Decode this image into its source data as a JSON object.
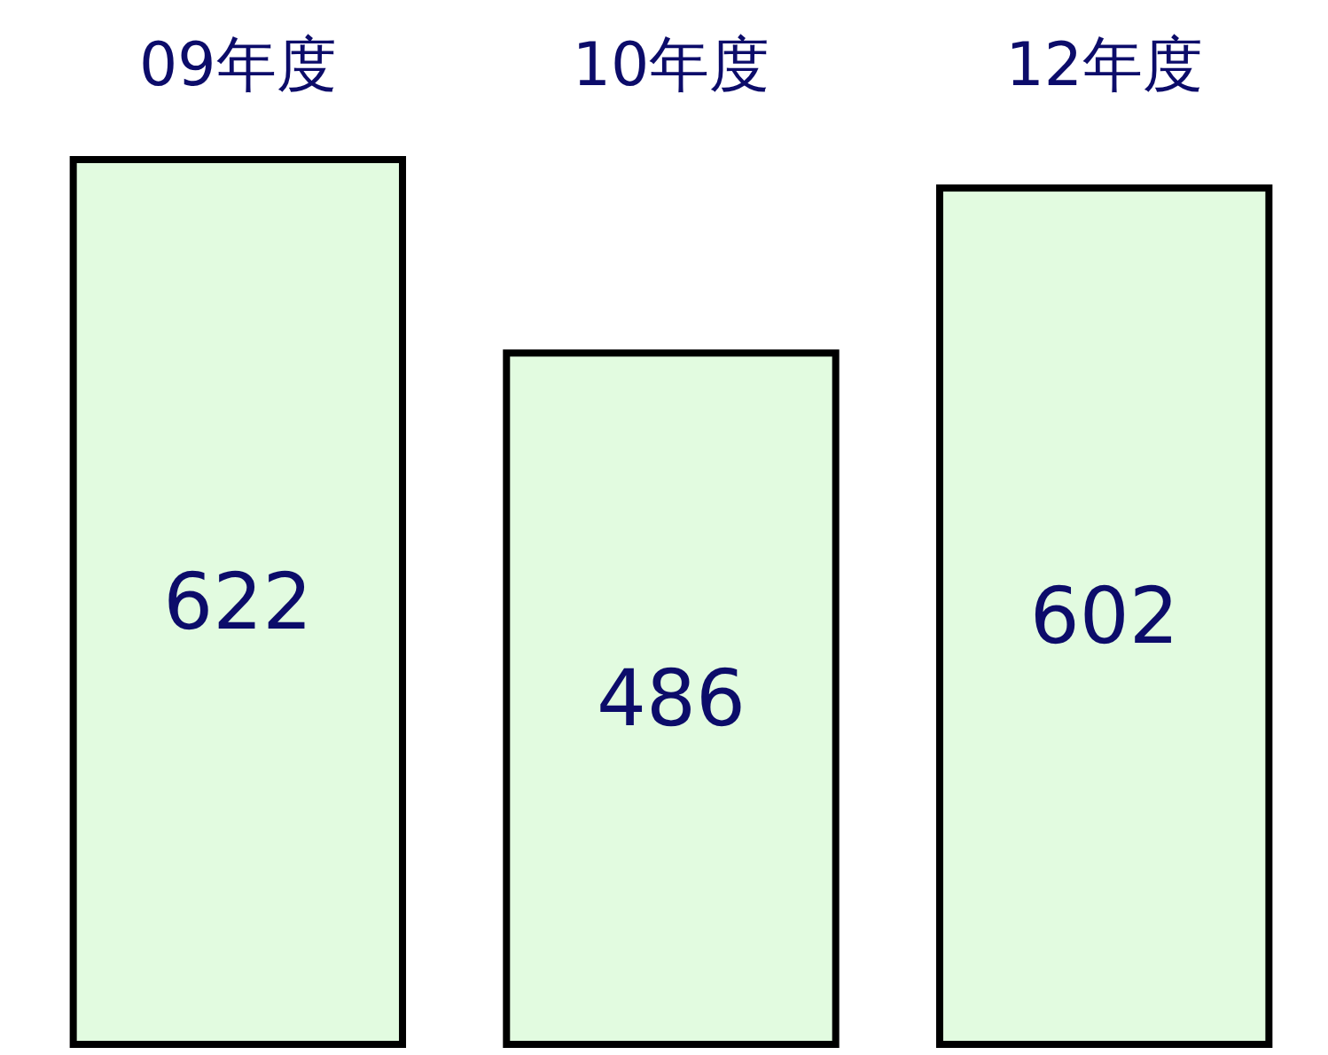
{
  "chart_data": {
    "type": "bar",
    "categories": [
      "09年度",
      "10年度",
      "12年度"
    ],
    "values": [
      622,
      486,
      602
    ],
    "color": "#e2fbe0",
    "data_labels": true
  }
}
